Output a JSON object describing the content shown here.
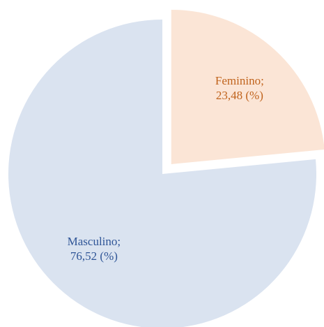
{
  "chart_data": {
    "type": "pie",
    "categories": [
      "Feminino;",
      "Masculino;"
    ],
    "values": [
      23.48,
      76.52
    ],
    "value_labels": [
      "23,48 (%)",
      "76,52 (%)"
    ],
    "colors": [
      "#fbe5d6",
      "#dae3f0"
    ],
    "label_colors": [
      "#c0631c",
      "#2f5597"
    ]
  }
}
